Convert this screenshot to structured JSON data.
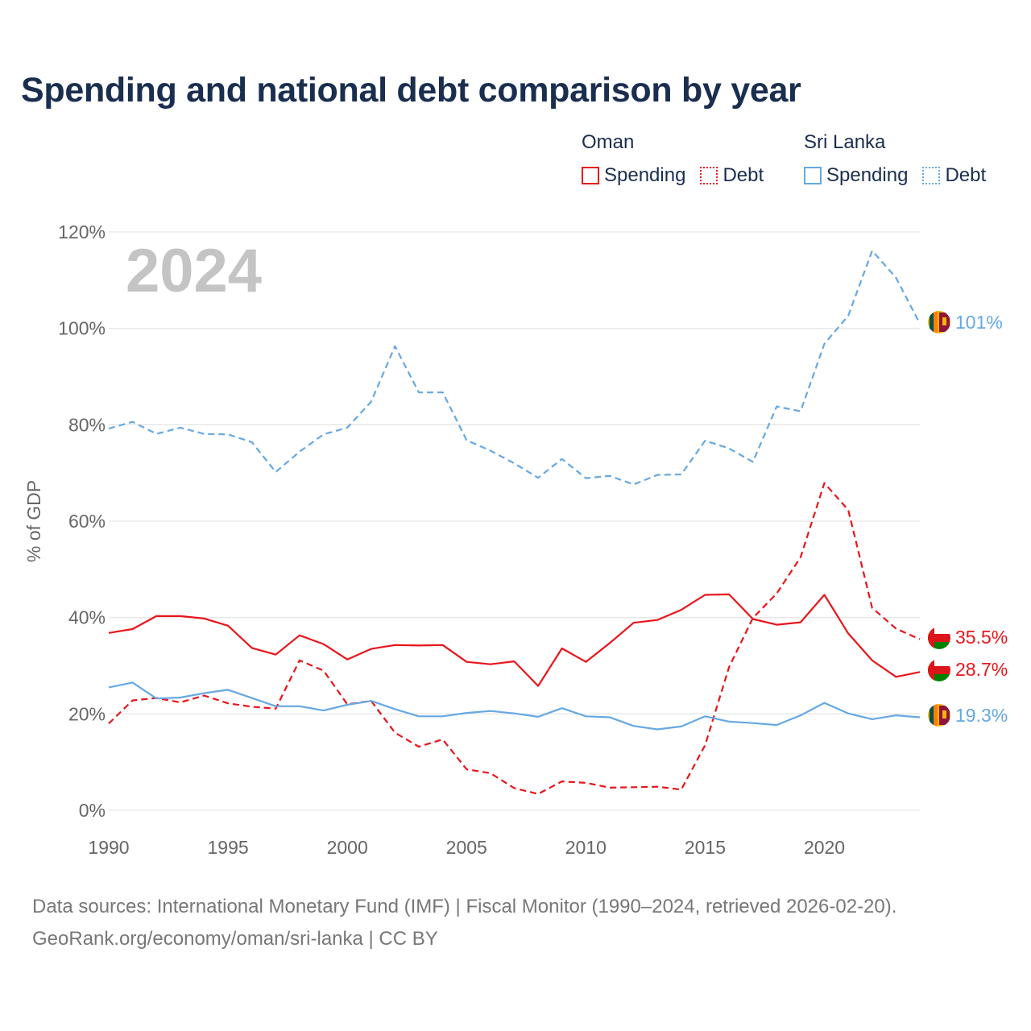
{
  "title": "Spending and national debt comparison by year",
  "legend": {
    "groups": [
      {
        "name": "Oman",
        "spending_label": "Spending",
        "debt_label": "Debt"
      },
      {
        "name": "Sri Lanka",
        "spending_label": "Spending",
        "debt_label": "Debt"
      }
    ]
  },
  "colors": {
    "oman": "#e8151b",
    "sri_lanka": "#65a8e3"
  },
  "year_watermark": "2024",
  "chart_data": {
    "type": "line",
    "title": "Spending and national debt comparison by year",
    "xlabel": "",
    "ylabel": "% of GDP",
    "xlim": [
      1990,
      2024
    ],
    "ylim": [
      0,
      120
    ],
    "x_ticks": [
      1990,
      1995,
      2000,
      2005,
      2010,
      2015,
      2020
    ],
    "y_ticks": [
      0,
      20,
      40,
      60,
      80,
      100,
      120
    ],
    "y_tick_labels": [
      "0%",
      "20%",
      "40%",
      "60%",
      "80%",
      "100%",
      "120%"
    ],
    "grid": true,
    "x": [
      1990,
      1991,
      1992,
      1993,
      1994,
      1995,
      1996,
      1997,
      1998,
      1999,
      2000,
      2001,
      2002,
      2003,
      2004,
      2005,
      2006,
      2007,
      2008,
      2009,
      2010,
      2011,
      2012,
      2013,
      2014,
      2015,
      2016,
      2017,
      2018,
      2019,
      2020,
      2021,
      2022,
      2023,
      2024
    ],
    "series": [
      {
        "name": "Oman Spending",
        "country": "Oman",
        "metric": "Spending",
        "color": "#e8151b",
        "dashed": false,
        "values": [
          36.8,
          37.6,
          40.3,
          40.3,
          39.8,
          38.3,
          33.7,
          32.3,
          36.3,
          34.5,
          31.3,
          33.5,
          34.3,
          34.2,
          34.3,
          30.8,
          30.3,
          30.9,
          25.8,
          33.6,
          30.8,
          34.7,
          38.9,
          39.5,
          41.6,
          44.7,
          44.8,
          39.7,
          38.5,
          39.0,
          44.7,
          36.7,
          31.1,
          27.7,
          28.7
        ],
        "end_label": "28.7%"
      },
      {
        "name": "Oman Debt",
        "country": "Oman",
        "metric": "Debt",
        "color": "#e8151b",
        "dashed": true,
        "values": [
          18.0,
          22.8,
          23.3,
          22.4,
          23.8,
          22.2,
          21.5,
          21.1,
          31.1,
          29.0,
          22.0,
          22.7,
          16.1,
          13.2,
          14.7,
          8.5,
          7.7,
          4.6,
          3.4,
          6.0,
          5.7,
          4.7,
          4.8,
          4.9,
          4.3,
          13.5,
          29.7,
          39.9,
          45.0,
          52.5,
          67.9,
          62.3,
          42.0,
          37.7,
          35.5
        ],
        "end_label": "35.5%"
      },
      {
        "name": "Sri Lanka Spending",
        "country": "Sri Lanka",
        "metric": "Spending",
        "color": "#65a8e3",
        "dashed": false,
        "values": [
          25.5,
          26.5,
          23.2,
          23.4,
          24.3,
          25.0,
          23.3,
          21.6,
          21.6,
          20.7,
          21.9,
          22.7,
          21.0,
          19.5,
          19.5,
          20.2,
          20.6,
          20.1,
          19.4,
          21.2,
          19.5,
          19.3,
          17.5,
          16.8,
          17.4,
          19.5,
          18.4,
          18.1,
          17.7,
          19.7,
          22.3,
          20.1,
          18.9,
          19.7,
          19.3
        ],
        "end_label": "19.3%"
      },
      {
        "name": "Sri Lanka Debt",
        "country": "Sri Lanka",
        "metric": "Debt",
        "color": "#65a8e3",
        "dashed": true,
        "values": [
          79.2,
          80.6,
          78.1,
          79.4,
          78.1,
          78.0,
          76.4,
          70.2,
          74.4,
          78.0,
          79.4,
          84.8,
          96.3,
          86.7,
          86.7,
          76.8,
          74.6,
          72.0,
          69.0,
          72.9,
          68.9,
          69.4,
          67.6,
          69.6,
          69.7,
          76.7,
          75.1,
          72.3,
          83.8,
          82.8,
          96.8,
          102.6,
          116.1,
          110.5,
          101.0
        ],
        "end_label": "101%"
      }
    ]
  },
  "source_lines": [
    "Data sources: International Monetary Fund (IMF) | Fiscal Monitor (1990–2024, retrieved 2026-02-20).",
    "GeoRank.org/economy/oman/sri-lanka | CC BY"
  ]
}
